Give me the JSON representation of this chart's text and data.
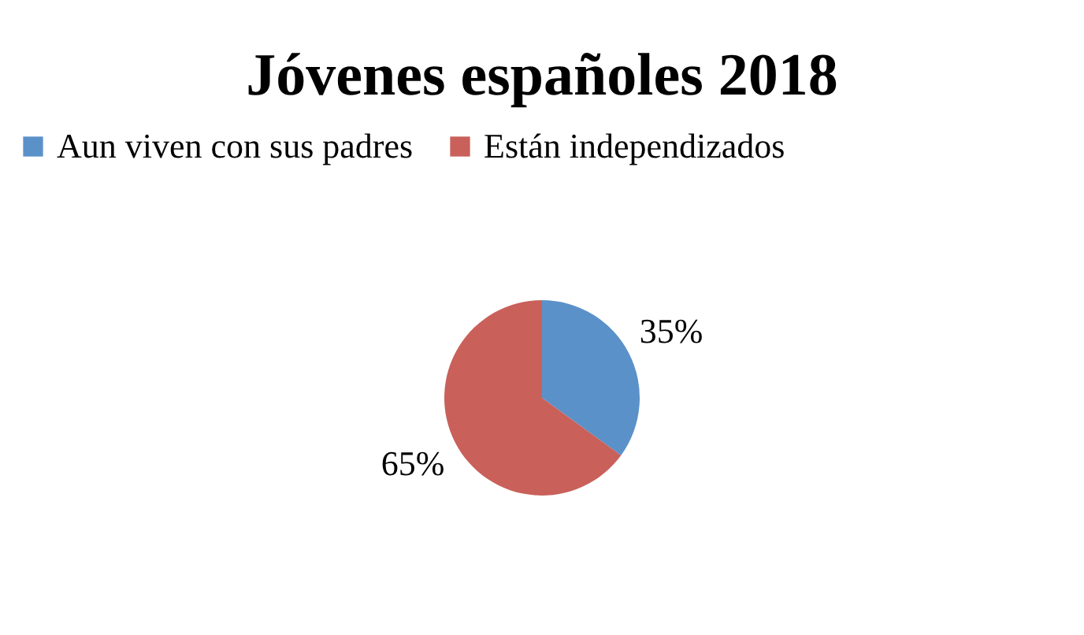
{
  "chart_data": {
    "type": "pie",
    "title": "Jóvenes españoles 2018",
    "categories": [
      "Aun viven con sus padres",
      "Están independizados"
    ],
    "values": [
      35,
      65
    ],
    "colors": [
      "#5b91c9",
      "#c9605a"
    ],
    "value_labels": [
      "35%",
      "65%"
    ],
    "legend": "top"
  }
}
